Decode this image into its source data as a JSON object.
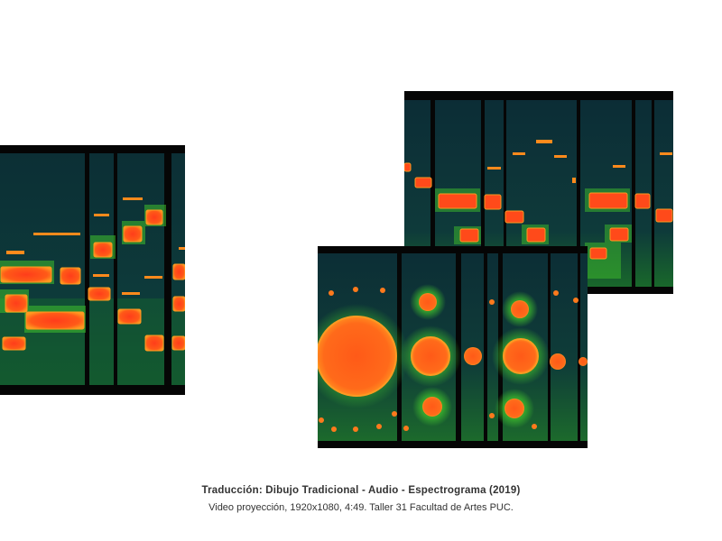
{
  "artwork": {
    "title": "Traducción: Dibujo Tradicional - Audio - Espectrograma (2019)",
    "details": "Video proyección, 1920x1080, 4:49. Taller 31 Facultad de Artes PUC."
  },
  "colors": {
    "background": "#ffffff",
    "frame": "#060606",
    "spectrogram_bg": "#0b3338",
    "low_energy": "#2aa82a",
    "high_energy": "#ff4a1a",
    "hot_edge": "#ff8f1f"
  }
}
